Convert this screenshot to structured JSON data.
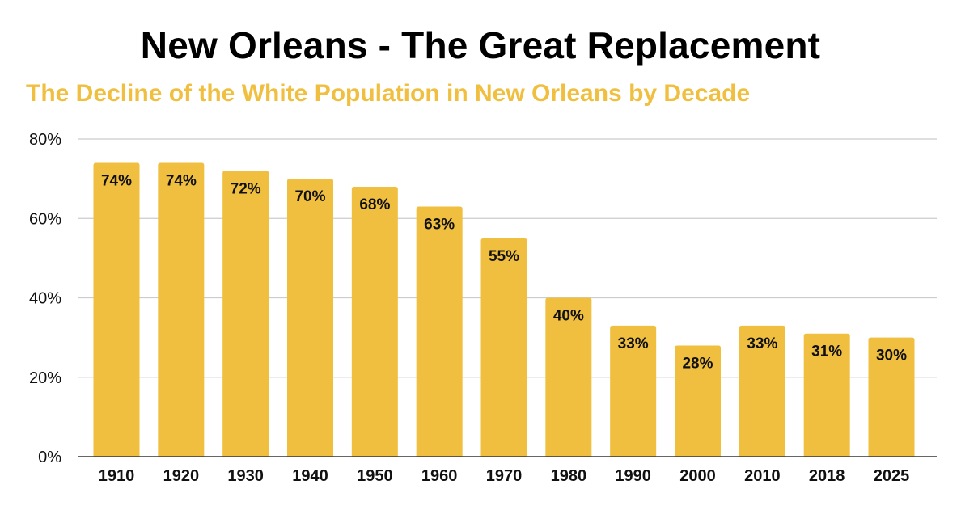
{
  "chart_data": {
    "type": "bar",
    "title": "New Orleans - The Great Replacement",
    "subtitle": "The Decline of the White Population in New Orleans by Decade",
    "xlabel": "",
    "ylabel": "",
    "ylim": [
      0,
      80
    ],
    "y_ticks": [
      "0%",
      "20%",
      "40%",
      "60%",
      "80%"
    ],
    "y_tick_values": [
      0,
      20,
      40,
      60,
      80
    ],
    "grid": true,
    "legend": "none",
    "categories": [
      "1910",
      "1920",
      "1930",
      "1940",
      "1950",
      "1960",
      "1970",
      "1980",
      "1990",
      "2000",
      "2010",
      "2018",
      "2025"
    ],
    "values": [
      74,
      74,
      72,
      70,
      68,
      63,
      55,
      40,
      33,
      28,
      33,
      31,
      30
    ],
    "data_labels": [
      "74%",
      "74%",
      "72%",
      "70%",
      "68%",
      "63%",
      "55%",
      "40%",
      "33%",
      "28%",
      "33%",
      "31%",
      "30%"
    ]
  },
  "colors": {
    "bar": "#F0BF3F",
    "subtitle": "#F0BF3F",
    "grid": "#CCCCCC",
    "axis": "#333333"
  }
}
